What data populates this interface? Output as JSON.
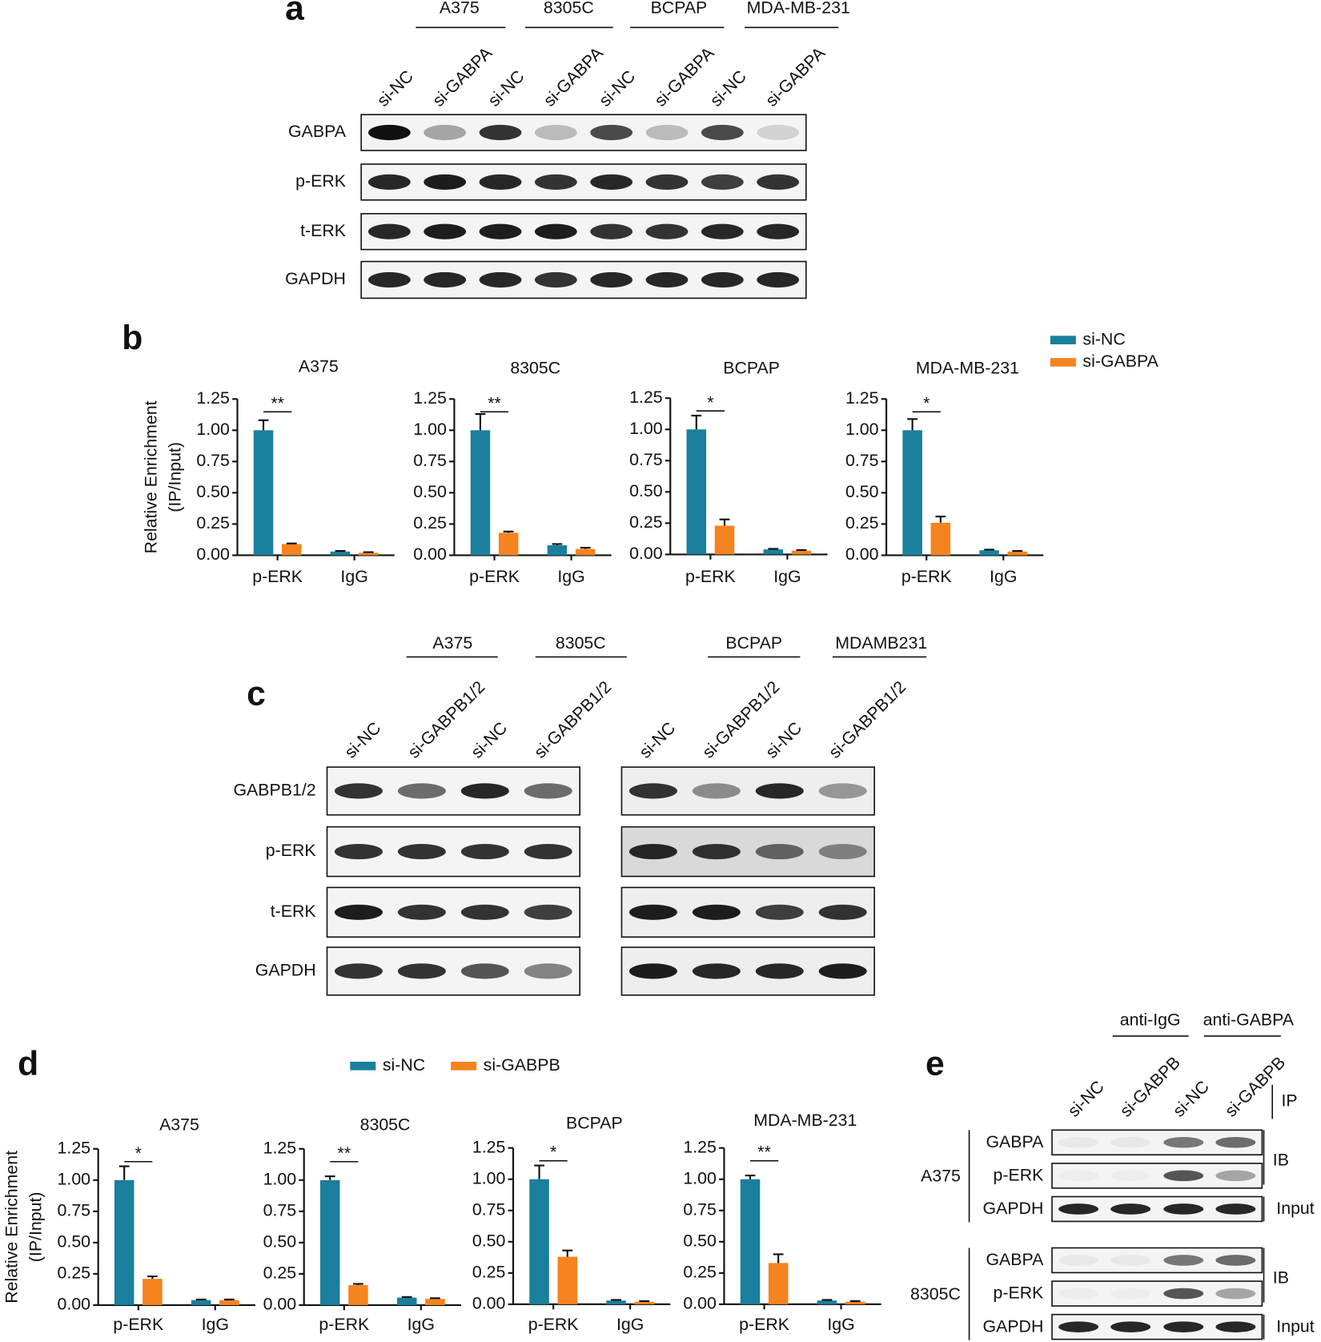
{
  "panel_a": {
    "letter": "a",
    "groups": [
      "A375",
      "8305C",
      "BCPAP",
      "MDA-MB-231"
    ],
    "lanes": [
      "si-NC",
      "si-GABPA",
      "si-NC",
      "si-GABPA",
      "si-NC",
      "si-GABPA",
      "si-NC",
      "si-GABPA"
    ],
    "rows": [
      "GABPA",
      "p-ERK",
      "t-ERK",
      "GAPDH"
    ]
  },
  "panel_b": {
    "letter": "b"
  },
  "panel_c": {
    "letter": "c",
    "groups": [
      "A375",
      "8305C",
      "BCPAP",
      "MDAMB231"
    ],
    "lanes": [
      "si-NC",
      "si-GABPB1/2",
      "si-NC",
      "si-GABPB1/2",
      "si-NC",
      "si-GABPB1/2",
      "si-NC",
      "si-GABPB1/2"
    ],
    "rows": [
      "GABPB1/2",
      "p-ERK",
      "t-ERK",
      "GAPDH"
    ]
  },
  "panel_d": {
    "letter": "d"
  },
  "panel_e": {
    "letter": "e",
    "groups": [
      "anti-IgG",
      "anti-GABPA"
    ],
    "lanes": [
      "si-NC",
      "si-GABPB",
      "si-NC",
      "si-GABPB"
    ],
    "ip": "IP",
    "blocks": [
      {
        "cell": "A375",
        "rows": [
          "GABPA",
          "p-ERK",
          "GAPDH"
        ],
        "ib": "IB",
        "input": "Input"
      },
      {
        "cell": "8305C",
        "rows": [
          "GABPA",
          "p-ERK",
          "GAPDH"
        ],
        "ib": "IB",
        "input": "Input"
      }
    ]
  },
  "chart_data": [
    {
      "type": "bar",
      "title": "A375",
      "ylabel": [
        "Relative Enrichment",
        "(IP/Input)"
      ],
      "categories": [
        "p-ERK",
        "IgG"
      ],
      "significance": "**",
      "ylim": [
        0,
        1.25
      ],
      "yticks": [
        {
          "value": 0,
          "label": "0.00"
        },
        0.25,
        {
          "value": 0.5,
          "label": "0.50"
        },
        0.75,
        {
          "value": 1,
          "label": "1.00"
        },
        1.25
      ],
      "series": [
        {
          "name": "si-NC",
          "color": "#1a7f9c",
          "values": [
            1.0,
            0.03
          ],
          "errors": [
            0.08,
            0.005
          ]
        },
        {
          "name": "si-GABPA",
          "color": "#f5831f",
          "values": [
            0.09,
            0.02
          ],
          "errors": [
            0.005,
            0.005
          ]
        }
      ]
    },
    {
      "type": "bar",
      "title": "8305C",
      "categories": [
        "p-ERK",
        "IgG"
      ],
      "significance": "**",
      "ylim": [
        0,
        1.25
      ],
      "yticks": [
        {
          "value": 0,
          "label": "0.00"
        },
        0.25,
        {
          "value": 0.5,
          "label": "0.50"
        },
        0.75,
        {
          "value": 1,
          "label": "1.00"
        },
        1.25
      ],
      "series": [
        {
          "name": "si-NC",
          "color": "#1a7f9c",
          "values": [
            1.0,
            0.08
          ],
          "errors": [
            0.13,
            0.01
          ]
        },
        {
          "name": "si-GABPA",
          "color": "#f5831f",
          "values": [
            0.18,
            0.05
          ],
          "errors": [
            0.01,
            0.01
          ]
        }
      ]
    },
    {
      "type": "bar",
      "title": "BCPAP",
      "categories": [
        "p-ERK",
        "IgG"
      ],
      "significance": "*",
      "ylim": [
        0,
        1.25
      ],
      "yticks": [
        {
          "value": 0,
          "label": "0.00"
        },
        0.25,
        {
          "value": 0.5,
          "label": "0.50"
        },
        0.75,
        {
          "value": 1,
          "label": "1.00"
        },
        1.25
      ],
      "series": [
        {
          "name": "si-NC",
          "color": "#1a7f9c",
          "values": [
            1.0,
            0.04
          ],
          "errors": [
            0.11,
            0.005
          ]
        },
        {
          "name": "si-GABPA",
          "color": "#f5831f",
          "values": [
            0.23,
            0.03
          ],
          "errors": [
            0.05,
            0.005
          ]
        }
      ]
    },
    {
      "type": "bar",
      "title": "MDA-MB-231",
      "categories": [
        "p-ERK",
        "IgG"
      ],
      "significance": "*",
      "ylim": [
        0,
        1.25
      ],
      "yticks": [
        {
          "value": 0,
          "label": "0.00"
        },
        0.25,
        {
          "value": 0.5,
          "label": "0.50"
        },
        0.75,
        {
          "value": 1,
          "label": "1.00"
        },
        1.25
      ],
      "series": [
        {
          "name": "si-NC",
          "color": "#1a7f9c",
          "values": [
            1.0,
            0.04
          ],
          "errors": [
            0.09,
            0.005
          ]
        },
        {
          "name": "si-GABPA",
          "color": "#f5831f",
          "values": [
            0.26,
            0.03
          ],
          "errors": [
            0.05,
            0.005
          ]
        }
      ]
    },
    {
      "type": "bar",
      "title": "A375",
      "ylabel": [
        "Relative Enrichment",
        "(IP/Input)"
      ],
      "categories": [
        "p-ERK",
        "IgG"
      ],
      "significance": "*",
      "ylim": [
        0,
        1.25
      ],
      "yticks": [
        {
          "value": 0,
          "label": "0.00"
        },
        0.25,
        {
          "value": 0.5,
          "label": "0.50"
        },
        0.75,
        {
          "value": 1,
          "label": "1.00"
        },
        1.25
      ],
      "series": [
        {
          "name": "si-NC",
          "color": "#1a7f9c",
          "values": [
            1.0,
            0.04
          ],
          "errors": [
            0.11,
            0.005
          ]
        },
        {
          "name": "si-GABPB",
          "color": "#f5831f",
          "values": [
            0.21,
            0.04
          ],
          "errors": [
            0.02,
            0.005
          ]
        }
      ]
    },
    {
      "type": "bar",
      "title": "8305C",
      "categories": [
        "p-ERK",
        "IgG"
      ],
      "significance": "**",
      "ylim": [
        0,
        1.25
      ],
      "yticks": [
        {
          "value": 0,
          "label": "0.00"
        },
        0.25,
        {
          "value": 0.5,
          "label": "0.50"
        },
        0.75,
        {
          "value": 1,
          "label": "1.00"
        },
        1.25
      ],
      "series": [
        {
          "name": "si-NC",
          "color": "#1a7f9c",
          "values": [
            1.0,
            0.06
          ],
          "errors": [
            0.03,
            0.005
          ]
        },
        {
          "name": "si-GABPB",
          "color": "#f5831f",
          "values": [
            0.16,
            0.05
          ],
          "errors": [
            0.01,
            0.005
          ]
        }
      ]
    },
    {
      "type": "bar",
      "title": "BCPAP",
      "categories": [
        "p-ERK",
        "IgG"
      ],
      "significance": "*",
      "ylim": [
        0,
        1.25
      ],
      "yticks": [
        {
          "value": 0,
          "label": "0.00"
        },
        0.25,
        {
          "value": 0.5,
          "label": "0.50"
        },
        0.75,
        {
          "value": 1,
          "label": "1.00"
        },
        1.25
      ],
      "series": [
        {
          "name": "si-NC",
          "color": "#1a7f9c",
          "values": [
            1.0,
            0.03
          ],
          "errors": [
            0.11,
            0.005
          ]
        },
        {
          "name": "si-GABPB",
          "color": "#f5831f",
          "values": [
            0.38,
            0.02
          ],
          "errors": [
            0.05,
            0.005
          ]
        }
      ]
    },
    {
      "type": "bar",
      "title": "MDA-MB-231",
      "categories": [
        "p-ERK",
        "IgG"
      ],
      "significance": "**",
      "ylim": [
        0,
        1.25
      ],
      "yticks": [
        {
          "value": 0,
          "label": "0.00"
        },
        0.25,
        {
          "value": 0.5,
          "label": "0.50"
        },
        0.75,
        {
          "value": 1,
          "label": "1.00"
        },
        1.25
      ],
      "series": [
        {
          "name": "si-NC",
          "color": "#1a7f9c",
          "values": [
            1.0,
            0.03
          ],
          "errors": [
            0.03,
            0.005
          ]
        },
        {
          "name": "si-GABPB",
          "color": "#f5831f",
          "values": [
            0.33,
            0.02
          ],
          "errors": [
            0.07,
            0.005
          ]
        }
      ]
    }
  ]
}
